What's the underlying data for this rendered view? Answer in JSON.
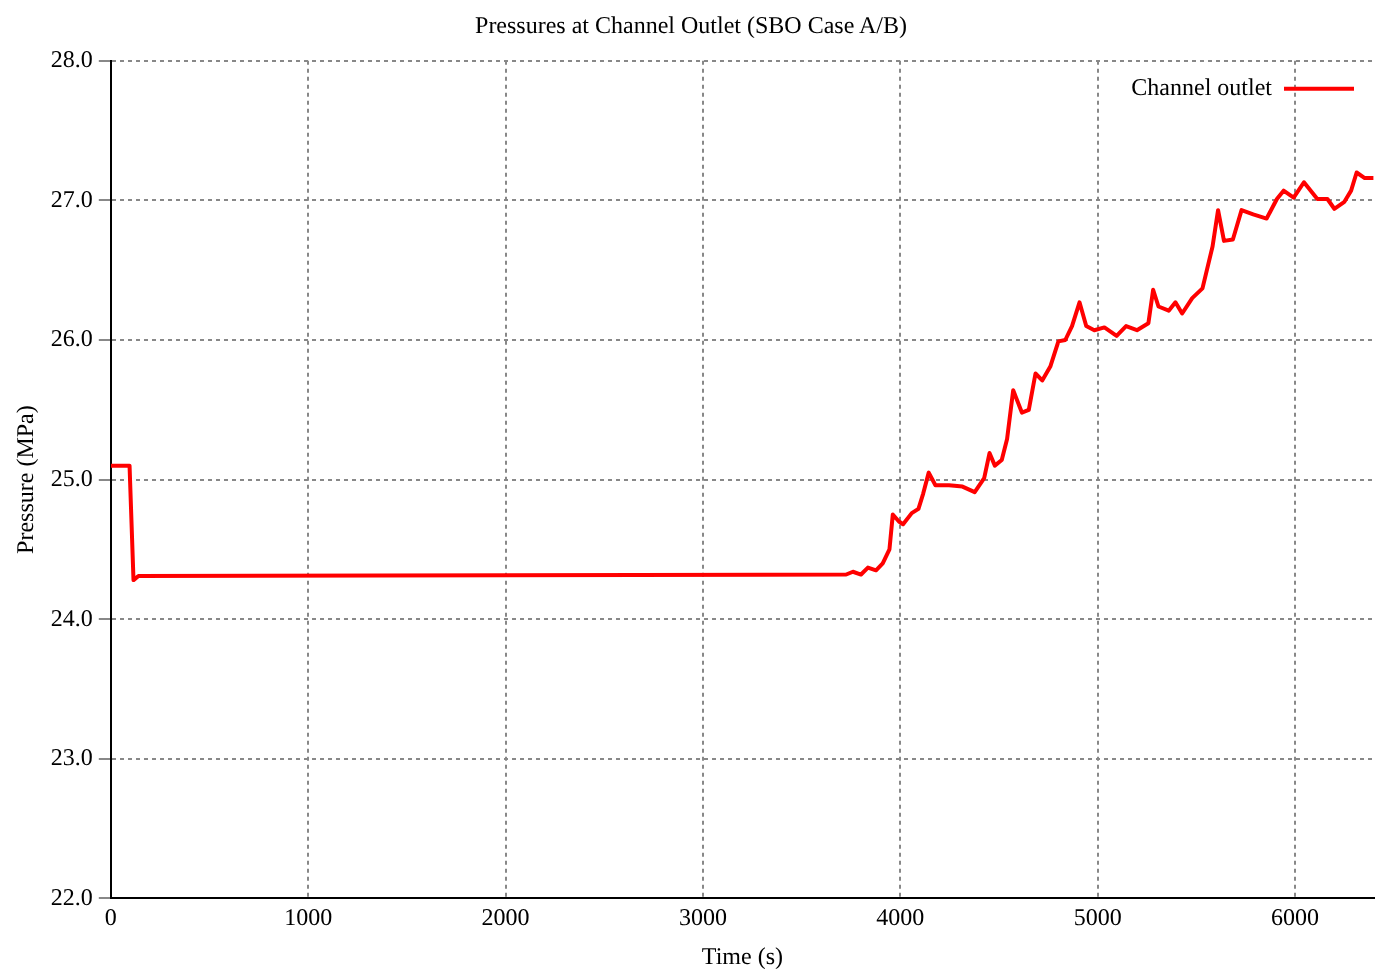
{
  "chart_data": {
    "type": "line",
    "title": "Pressures at Channel Outlet (SBO Case A/B)",
    "xlabel": "Time (s)",
    "ylabel": "Pressure (MPa)",
    "xlim": [
      0,
      6400
    ],
    "xticks": [
      0,
      1000,
      2000,
      3000,
      4000,
      5000,
      6000
    ],
    "ylim": [
      22,
      28
    ],
    "yticks": [
      {
        "value": 22,
        "label": "22.0"
      },
      {
        "value": 23,
        "label": "23.0"
      },
      {
        "value": 24,
        "label": "24.0"
      },
      {
        "value": 25,
        "label": "25.0"
      },
      {
        "value": 26,
        "label": "26.0"
      },
      {
        "value": 27,
        "label": "27.0"
      },
      {
        "value": 28,
        "label": "28.0"
      }
    ],
    "grid": true,
    "legend": "top right",
    "marker": "none",
    "line_style": "solid",
    "series": [
      {
        "name": "Channel outlet",
        "color": "#ff0000",
        "x": [
          0,
          95,
          115,
          140,
          3726,
          3760,
          3801,
          3836,
          3877,
          3911,
          3945,
          3962,
          3993,
          4014,
          4058,
          4092,
          4116,
          4144,
          4178,
          4247,
          4315,
          4377,
          4425,
          4452,
          4479,
          4514,
          4541,
          4572,
          4616,
          4651,
          4685,
          4719,
          4760,
          4801,
          4836,
          4870,
          4908,
          4942,
          4983,
          5034,
          5096,
          5144,
          5199,
          5257,
          5281,
          5308,
          5360,
          5394,
          5428,
          5479,
          5531,
          5582,
          5610,
          5640,
          5685,
          5729,
          5788,
          5856,
          5908,
          5942,
          5993,
          6045,
          6113,
          6164,
          6199,
          6250,
          6284,
          6312,
          6353,
          6397
        ],
        "values": [
          25.1,
          25.1,
          24.28,
          24.31,
          24.32,
          24.34,
          24.32,
          24.37,
          24.35,
          24.4,
          24.5,
          24.75,
          24.7,
          24.68,
          24.76,
          24.79,
          24.9,
          25.05,
          24.96,
          24.96,
          24.95,
          24.91,
          25.01,
          25.19,
          25.1,
          25.14,
          25.29,
          25.64,
          25.48,
          25.5,
          25.76,
          25.71,
          25.81,
          25.99,
          26.0,
          26.1,
          26.27,
          26.1,
          26.07,
          26.09,
          26.03,
          26.1,
          26.07,
          26.12,
          26.36,
          26.24,
          26.21,
          26.27,
          26.19,
          26.3,
          26.37,
          26.67,
          26.93,
          26.71,
          26.72,
          26.93,
          26.9,
          26.87,
          27.01,
          27.07,
          27.02,
          27.13,
          27.01,
          27.01,
          26.94,
          26.99,
          27.07,
          27.2,
          27.16,
          27.16
        ]
      }
    ]
  }
}
